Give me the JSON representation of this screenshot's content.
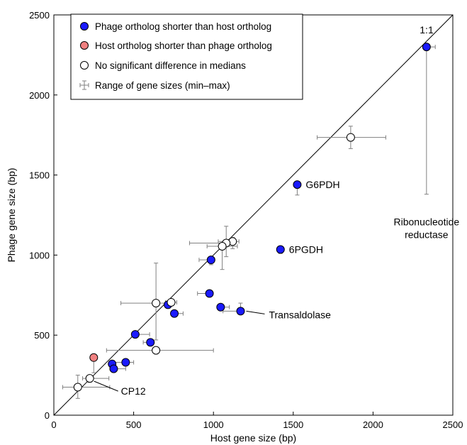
{
  "chart_data": {
    "type": "scatter",
    "xlabel": "Host gene size (bp)",
    "ylabel": "Phage gene size (bp)",
    "xlim": [
      0,
      2500
    ],
    "ylim": [
      0,
      2500
    ],
    "xticks": [
      0,
      500,
      1000,
      1500,
      2000,
      2500
    ],
    "yticks": [
      0,
      500,
      1000,
      1500,
      2000,
      2500
    ],
    "grid": false,
    "legend_placement": "top-left",
    "reference_line": {
      "label": "1:1",
      "from": [
        0,
        0
      ],
      "to": [
        2500,
        2500
      ]
    },
    "legend": [
      {
        "label": "Phage ortholog shorter than host ortholog",
        "marker": "filled-circle",
        "color": "#1a1aff"
      },
      {
        "label": "Host ortholog shorter than phage ortholog",
        "marker": "filled-circle",
        "color": "#f08080"
      },
      {
        "label": "No significant difference in medians",
        "marker": "open-circle",
        "color": "#ffffff"
      },
      {
        "label": "Range of gene sizes (min–max)",
        "marker": "errorbar",
        "color": "#808080"
      }
    ],
    "series": [
      {
        "name": "Phage ortholog shorter than host ortholog",
        "color": "#1a1aff",
        "fill": "filled",
        "points": [
          {
            "x": 2335,
            "y": 2300,
            "xerr": [
              2320,
              2390
            ],
            "yerr": [
              1380,
              2320
            ]
          },
          {
            "x": 1525,
            "y": 1440,
            "yerr": [
              1375,
              1450
            ]
          },
          {
            "x": 1420,
            "y": 1035,
            "xerr": [
              1405,
              1440
            ],
            "yerr": [
              1010,
              1045
            ]
          },
          {
            "x": 985,
            "y": 970,
            "xerr": [
              910,
              1005
            ],
            "yerr": [
              940,
              980
            ]
          },
          {
            "x": 975,
            "y": 760,
            "xerr": [
              900,
              990
            ],
            "yerr": [
              745,
              770
            ]
          },
          {
            "x": 1045,
            "y": 675,
            "xerr": [
              1030,
              1100
            ],
            "yerr": [
              655,
              690
            ]
          },
          {
            "x": 1170,
            "y": 650,
            "xerr": [
              1060,
              1180
            ],
            "yerr": [
              630,
              700
            ]
          },
          {
            "x": 715,
            "y": 690,
            "xerr": [
              705,
              725
            ],
            "yerr": [
              670,
              710
            ]
          },
          {
            "x": 755,
            "y": 635,
            "xerr": [
              745,
              810
            ],
            "yerr": [
              625,
              645
            ]
          },
          {
            "x": 510,
            "y": 505,
            "xerr": [
              490,
              600
            ],
            "yerr": [
              495,
              515
            ]
          },
          {
            "x": 605,
            "y": 455,
            "xerr": [
              560,
              620
            ],
            "yerr": [
              445,
              465
            ]
          },
          {
            "x": 450,
            "y": 330,
            "xerr": [
              380,
              500
            ],
            "yerr": [
              320,
              340
            ]
          },
          {
            "x": 365,
            "y": 320,
            "xerr": [
              350,
              380
            ],
            "yerr": [
              310,
              330
            ]
          },
          {
            "x": 375,
            "y": 290,
            "xerr": [
              360,
              450
            ],
            "yerr": [
              280,
              300
            ]
          }
        ]
      },
      {
        "name": "Host ortholog shorter than phage ortholog",
        "color": "#f08080",
        "fill": "filled",
        "points": [
          {
            "x": 250,
            "y": 360,
            "xerr": [
              240,
              265
            ],
            "yerr": [
              265,
              370
            ]
          }
        ]
      },
      {
        "name": "No significant difference in medians",
        "color": "#ffffff",
        "fill": "open",
        "points": [
          {
            "x": 1860,
            "y": 1735,
            "xerr": [
              1650,
              2080
            ],
            "yerr": [
              1665,
              1805
            ]
          },
          {
            "x": 1120,
            "y": 1085,
            "xerr": [
              1030,
              1160
            ],
            "yerr": [
              1040,
              1110
            ]
          },
          {
            "x": 1080,
            "y": 1075,
            "xerr": [
              850,
              1110
            ],
            "yerr": [
              990,
              1180
            ]
          },
          {
            "x": 1055,
            "y": 1055,
            "xerr": [
              960,
              1150
            ],
            "yerr": [
              910,
              1075
            ]
          },
          {
            "x": 640,
            "y": 700,
            "xerr": [
              420,
              700
            ],
            "yerr": [
              470,
              950
            ]
          },
          {
            "x": 735,
            "y": 705,
            "xerr": [
              700,
              770
            ],
            "yerr": [
              690,
              720
            ]
          },
          {
            "x": 640,
            "y": 405,
            "xerr": [
              330,
              1000
            ],
            "yerr": [
              395,
              415
            ]
          },
          {
            "x": 225,
            "y": 230,
            "xerr": [
              180,
              345
            ],
            "yerr": [
              205,
              245
            ]
          },
          {
            "x": 150,
            "y": 175,
            "xerr": [
              55,
              350
            ],
            "yerr": [
              105,
              250
            ]
          }
        ]
      }
    ],
    "annotations": [
      {
        "text": "G6PDH",
        "x": 1525,
        "y": 1440
      },
      {
        "text": "6PGDH",
        "x": 1420,
        "y": 1035
      },
      {
        "text": "Transaldolase",
        "x": 1170,
        "y": 650
      },
      {
        "text": "Ribonucleotide",
        "x": 2335,
        "y": 2300
      },
      {
        "text": "reductase",
        "x": 2335,
        "y": 2300
      },
      {
        "text": "CP12",
        "x": 225,
        "y": 230
      }
    ]
  }
}
